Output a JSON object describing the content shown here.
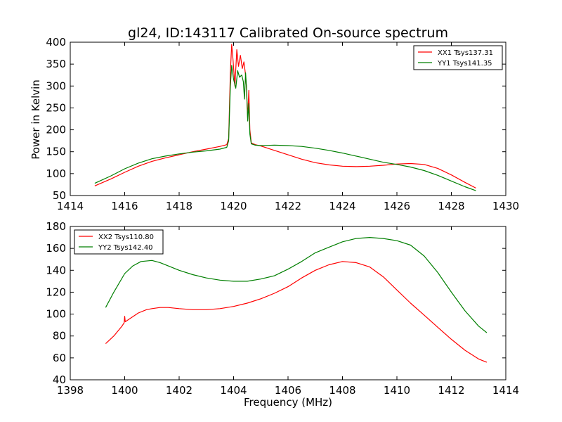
{
  "chart_data": [
    {
      "type": "line",
      "title": "gl24, ID:143117 Calibrated On-source spectrum",
      "xlabel": "",
      "ylabel": "Power in Kelvin",
      "xlim": [
        1414,
        1430
      ],
      "ylim": [
        50,
        400
      ],
      "xticks": [
        1414,
        1416,
        1418,
        1420,
        1422,
        1424,
        1426,
        1428,
        1430
      ],
      "yticks": [
        50,
        100,
        150,
        200,
        250,
        300,
        350,
        400
      ],
      "legend_position": "top-right",
      "series": [
        {
          "name": "XX1 Tsys137.31",
          "color": "#ff0000",
          "x": [
            1414.9,
            1415.5,
            1416.0,
            1416.5,
            1417.0,
            1417.5,
            1418.0,
            1418.5,
            1419.0,
            1419.5,
            1419.75,
            1419.82,
            1419.88,
            1419.93,
            1419.98,
            1420.05,
            1420.12,
            1420.18,
            1420.25,
            1420.32,
            1420.38,
            1420.43,
            1420.47,
            1420.52,
            1420.56,
            1420.6,
            1420.65,
            1420.8,
            1421.0,
            1421.5,
            1422.0,
            1422.5,
            1423.0,
            1423.5,
            1424.0,
            1424.5,
            1425.0,
            1425.5,
            1426.0,
            1426.5,
            1427.0,
            1427.5,
            1428.0,
            1428.5,
            1428.9
          ],
          "y": [
            72,
            88,
            103,
            117,
            128,
            136,
            143,
            150,
            156,
            162,
            166,
            180,
            330,
            395,
            360,
            300,
            383,
            345,
            370,
            340,
            355,
            330,
            300,
            225,
            290,
            200,
            170,
            166,
            163,
            153,
            143,
            133,
            125,
            120,
            117,
            116,
            117,
            119,
            122,
            123,
            121,
            112,
            97,
            80,
            67
          ]
        },
        {
          "name": "YY1 Tsys141.35",
          "color": "#007f00",
          "x": [
            1414.9,
            1415.5,
            1416.0,
            1416.5,
            1417.0,
            1417.5,
            1418.0,
            1418.5,
            1419.0,
            1419.5,
            1419.75,
            1419.82,
            1419.88,
            1419.93,
            1420.0,
            1420.08,
            1420.15,
            1420.22,
            1420.3,
            1420.36,
            1420.4,
            1420.44,
            1420.48,
            1420.52,
            1420.56,
            1420.6,
            1420.65,
            1420.8,
            1421.0,
            1421.5,
            1422.0,
            1422.5,
            1423.0,
            1423.5,
            1424.0,
            1424.5,
            1425.0,
            1425.5,
            1426.0,
            1426.5,
            1427.0,
            1427.5,
            1428.0,
            1428.5,
            1428.9
          ],
          "y": [
            78,
            95,
            111,
            124,
            134,
            140,
            145,
            149,
            152,
            156,
            160,
            175,
            300,
            347,
            315,
            295,
            335,
            320,
            325,
            310,
            270,
            330,
            290,
            220,
            260,
            190,
            168,
            165,
            164,
            165,
            164,
            162,
            158,
            153,
            147,
            140,
            133,
            126,
            121,
            115,
            107,
            96,
            83,
            70,
            61
          ]
        }
      ]
    },
    {
      "type": "line",
      "title": "",
      "xlabel": "Frequency (MHz)",
      "ylabel": "",
      "xlim": [
        1398,
        1414
      ],
      "ylim": [
        40,
        180
      ],
      "xticks": [
        1398,
        1400,
        1402,
        1404,
        1406,
        1408,
        1410,
        1412,
        1414
      ],
      "yticks": [
        40,
        60,
        80,
        100,
        120,
        140,
        160,
        180
      ],
      "legend_position": "top-left",
      "series": [
        {
          "name": "XX2 Tsys110.80",
          "color": "#ff0000",
          "x": [
            1399.3,
            1399.6,
            1399.9,
            1399.98,
            1400.0,
            1400.02,
            1400.2,
            1400.5,
            1400.8,
            1401.0,
            1401.3,
            1401.6,
            1402.0,
            1402.5,
            1403.0,
            1403.5,
            1404.0,
            1404.5,
            1405.0,
            1405.5,
            1406.0,
            1406.5,
            1407.0,
            1407.5,
            1408.0,
            1408.5,
            1409.0,
            1409.5,
            1410.0,
            1410.5,
            1411.0,
            1411.5,
            1412.0,
            1412.5,
            1413.0,
            1413.3
          ],
          "y": [
            73,
            80,
            89,
            92,
            98,
            93,
            96,
            101,
            104,
            105,
            106,
            106,
            105,
            104,
            104,
            105,
            107,
            110,
            114,
            119,
            125,
            133,
            140,
            145,
            148,
            147,
            143,
            134,
            122,
            110,
            99,
            88,
            77,
            67,
            59,
            56
          ]
        },
        {
          "name": "YY2 Tsys142.40",
          "color": "#007f00",
          "x": [
            1399.3,
            1399.6,
            1400.0,
            1400.3,
            1400.6,
            1401.0,
            1401.3,
            1401.6,
            1402.0,
            1402.5,
            1403.0,
            1403.5,
            1404.0,
            1404.5,
            1405.0,
            1405.5,
            1406.0,
            1406.5,
            1407.0,
            1407.5,
            1408.0,
            1408.5,
            1409.0,
            1409.5,
            1410.0,
            1410.5,
            1411.0,
            1411.5,
            1412.0,
            1412.5,
            1413.0,
            1413.3
          ],
          "y": [
            106,
            120,
            137,
            144,
            148,
            149,
            147,
            144,
            140,
            136,
            133,
            131,
            130,
            130,
            132,
            135,
            141,
            148,
            156,
            161,
            166,
            169,
            170,
            169,
            167,
            163,
            153,
            138,
            120,
            103,
            89,
            83
          ]
        }
      ]
    }
  ]
}
